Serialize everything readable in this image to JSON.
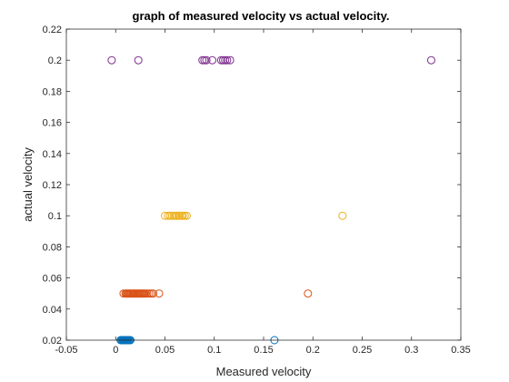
{
  "chart_data": {
    "type": "scatter",
    "title": "graph of measured velocity vs actual velocity.",
    "xlabel": "Measured velocity",
    "ylabel": "actual velocity",
    "xlim": [
      -0.05,
      0.35
    ],
    "ylim": [
      0.02,
      0.22
    ],
    "xticks": [
      "-0.05",
      "0",
      "0.05",
      "0.1",
      "0.15",
      "0.2",
      "0.25",
      "0.3",
      "0.35"
    ],
    "yticks": [
      "0.02",
      "0.04",
      "0.06",
      "0.08",
      "0.1",
      "0.12",
      "0.14",
      "0.16",
      "0.18",
      "0.2",
      "0.22"
    ],
    "grid": false,
    "marker": "open-circle",
    "series": [
      {
        "color": "#0072BD",
        "x": [
          0.005,
          0.006,
          0.007,
          0.008,
          0.008,
          0.009,
          0.009,
          0.01,
          0.01,
          0.011,
          0.011,
          0.012,
          0.012,
          0.013,
          0.014,
          0.015,
          0.161
        ],
        "y": [
          0.02,
          0.02,
          0.02,
          0.02,
          0.02,
          0.02,
          0.02,
          0.02,
          0.02,
          0.02,
          0.02,
          0.02,
          0.02,
          0.02,
          0.02,
          0.02,
          0.02
        ]
      },
      {
        "color": "#D95319",
        "x": [
          0.008,
          0.01,
          0.011,
          0.012,
          0.013,
          0.014,
          0.015,
          0.016,
          0.017,
          0.018,
          0.019,
          0.02,
          0.021,
          0.022,
          0.023,
          0.024,
          0.025,
          0.026,
          0.027,
          0.028,
          0.029,
          0.03,
          0.032,
          0.034,
          0.036,
          0.038,
          0.044,
          0.195
        ],
        "y": [
          0.05,
          0.05,
          0.05,
          0.05,
          0.05,
          0.05,
          0.05,
          0.05,
          0.05,
          0.05,
          0.05,
          0.05,
          0.05,
          0.05,
          0.05,
          0.05,
          0.05,
          0.05,
          0.05,
          0.05,
          0.05,
          0.05,
          0.05,
          0.05,
          0.05,
          0.05,
          0.05,
          0.05
        ]
      },
      {
        "color": "#EDB120",
        "x": [
          0.05,
          0.053,
          0.055,
          0.057,
          0.059,
          0.061,
          0.062,
          0.064,
          0.065,
          0.067,
          0.068,
          0.07,
          0.072,
          0.23
        ],
        "y": [
          0.1,
          0.1,
          0.1,
          0.1,
          0.1,
          0.1,
          0.1,
          0.1,
          0.1,
          0.1,
          0.1,
          0.1,
          0.1,
          0.1
        ]
      },
      {
        "color": "#7E2F8E",
        "x": [
          -0.004,
          0.023,
          0.088,
          0.09,
          0.092,
          0.098,
          0.107,
          0.109,
          0.111,
          0.113,
          0.116,
          0.32
        ],
        "y": [
          0.2,
          0.2,
          0.2,
          0.2,
          0.2,
          0.2,
          0.2,
          0.2,
          0.2,
          0.2,
          0.2,
          0.2
        ]
      }
    ]
  }
}
